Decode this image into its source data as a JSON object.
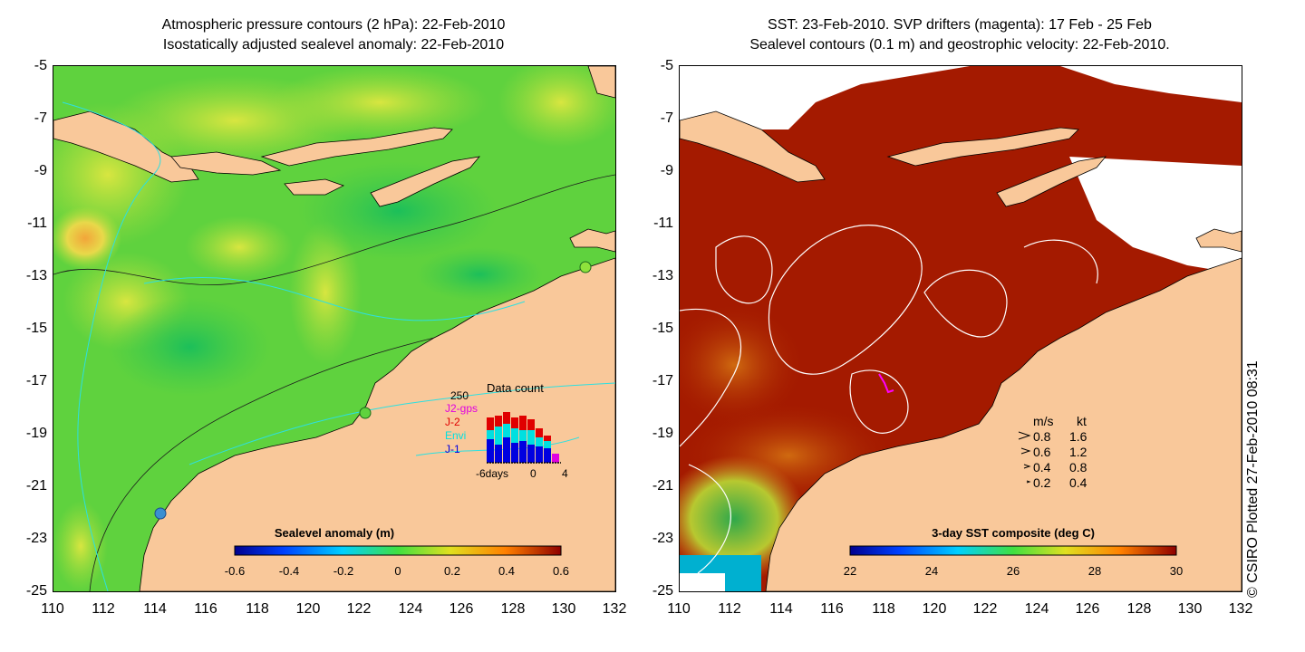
{
  "left_panel": {
    "title_line1": "Atmospheric pressure contours (2 hPa): 22-Feb-2010",
    "title_line2": "Isostatically adjusted sealevel anomaly: 22-Feb-2010",
    "colorbar_label": "Sealevel anomaly (m)",
    "colorbar_ticks": [
      "-0.6",
      "-0.4",
      "-0.2",
      "0",
      "0.2",
      "0.4",
      "0.6"
    ],
    "inset": {
      "title": "Data count",
      "ymax_label": "250",
      "legend": [
        {
          "label": "J2-gps",
          "color": "#e000e0"
        },
        {
          "label": "J-2",
          "color": "#e00000"
        },
        {
          "label": "Envi",
          "color": "#00e0e0"
        },
        {
          "label": "J-1",
          "color": "#0000e0"
        }
      ],
      "x_tick_left": "-6days",
      "x_tick_mid": "0",
      "x_tick_right": "4"
    }
  },
  "right_panel": {
    "title_line1": "SST: 23-Feb-2010. SVP drifters (magenta): 17 Feb - 25 Feb",
    "title_line2": "Sealevel contours (0.1 m) and geostrophic velocity: 22-Feb-2010.",
    "colorbar_label": "3-day SST composite (deg C)",
    "colorbar_ticks": [
      "22",
      "24",
      "26",
      "28",
      "30"
    ],
    "velocity_key": {
      "header_ms": "m/s",
      "header_kt": "kt",
      "rows": [
        {
          "ms": "0.8",
          "kt": "1.6"
        },
        {
          "ms": "0.6",
          "kt": "1.2"
        },
        {
          "ms": "0.4",
          "kt": "0.8"
        },
        {
          "ms": "0.2",
          "kt": "0.4"
        }
      ]
    }
  },
  "axes": {
    "y_ticks": [
      "-5",
      "-7",
      "-9",
      "-11",
      "-13",
      "-15",
      "-17",
      "-19",
      "-21",
      "-23",
      "-25"
    ],
    "x_ticks": [
      "110",
      "112",
      "114",
      "116",
      "118",
      "120",
      "122",
      "124",
      "126",
      "128",
      "130",
      "132"
    ]
  },
  "credit": "© CSIRO Plotted 27-Feb-2010 08:31"
}
